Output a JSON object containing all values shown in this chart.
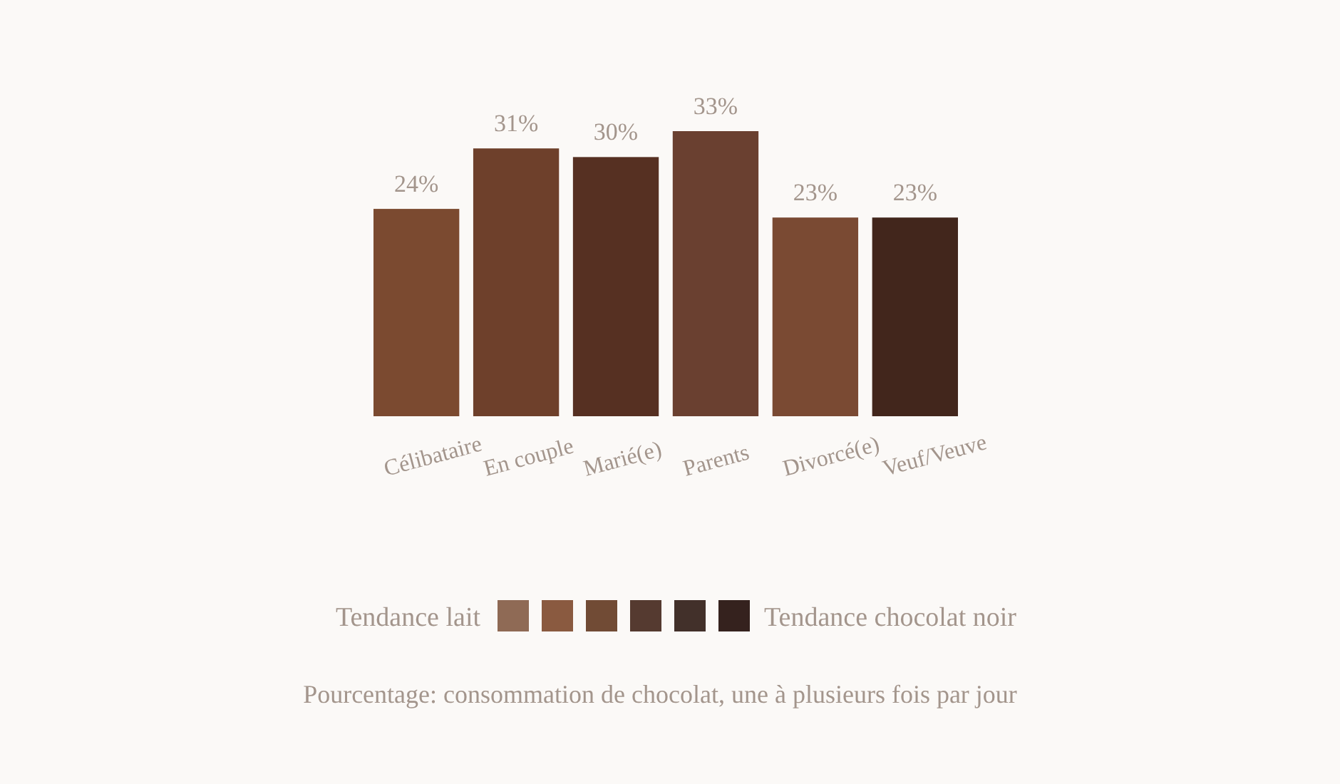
{
  "chart_data": [
    {
      "type": "bar",
      "categories": [
        "Célibataire",
        "En couple",
        "Marié(e)",
        "Parents",
        "Divorcé(e)",
        "Veuf/Veuve"
      ],
      "values": [
        24,
        31,
        30,
        33,
        23,
        23
      ],
      "colors": [
        "#7b4a30",
        "#6e402b",
        "#563022",
        "#6a4030",
        "#7a4a33",
        "#42261c"
      ],
      "value_labels": [
        "24%",
        "31%",
        "30%",
        "33%",
        "23%",
        "23%"
      ],
      "annotations": [
        "Pourcentage: consommation de chocolat, une à plusieurs fois par jour"
      ]
    },
    {
      "type": "other",
      "colors": [
        "#8f6a55",
        "#8a5a40",
        "#714b35",
        "#553a30",
        "#42302a",
        "#35221e"
      ],
      "annotations": [
        "Tendance lait",
        "Tendance chocolat noir"
      ]
    }
  ]
}
